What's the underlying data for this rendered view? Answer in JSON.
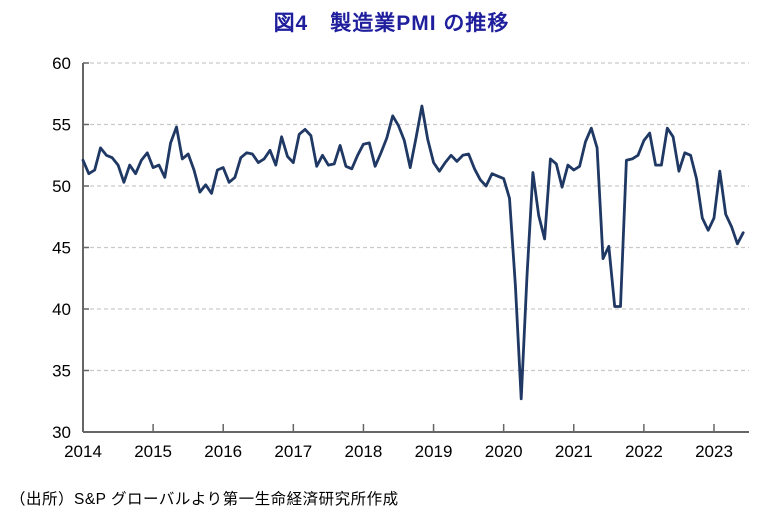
{
  "title": "図4　製造業PMI の推移",
  "source": "（出所）S&P グローバルより第一生命経済研究所作成",
  "colors": {
    "line": "#1f3864",
    "title": "#1f1f9e",
    "axis": "#666666",
    "grid": "#c9c9c9",
    "text": "#000000",
    "background": "#ffffff"
  },
  "chart_data": {
    "type": "line",
    "title": "図4　製造業PMI の推移",
    "xlabel": "",
    "ylabel": "",
    "x_unit": "month",
    "x_start": "2014-01",
    "x_end": "2023-06",
    "x_tick_labels": [
      "2014",
      "2015",
      "2016",
      "2017",
      "2018",
      "2019",
      "2020",
      "2021",
      "2022",
      "2023"
    ],
    "ylim": [
      30,
      60
    ],
    "y_ticks": [
      30,
      35,
      40,
      45,
      50,
      55,
      60
    ],
    "grid": "horizontal-dashed",
    "legend": "none",
    "series": [
      {
        "name": "製造業PMI",
        "values": [
          52.1,
          51.0,
          51.3,
          53.1,
          52.5,
          52.3,
          51.7,
          50.3,
          51.7,
          51.0,
          52.1,
          52.7,
          51.5,
          51.7,
          50.7,
          53.5,
          54.8,
          52.2,
          52.6,
          51.3,
          49.5,
          50.1,
          49.4,
          51.3,
          51.5,
          50.3,
          50.7,
          52.3,
          52.7,
          52.6,
          51.9,
          52.2,
          52.9,
          51.7,
          54.0,
          52.4,
          51.9,
          54.2,
          54.6,
          54.1,
          51.6,
          52.5,
          51.7,
          51.8,
          53.3,
          51.6,
          51.4,
          52.5,
          53.4,
          53.5,
          51.6,
          52.7,
          53.9,
          55.7,
          54.9,
          53.7,
          51.5,
          53.9,
          56.5,
          53.8,
          51.9,
          51.2,
          51.9,
          52.5,
          52.0,
          52.5,
          52.6,
          51.4,
          50.5,
          50.0,
          51.0,
          50.8,
          50.6,
          49.0,
          41.9,
          32.7,
          42.7,
          51.1,
          47.6,
          45.7,
          52.2,
          51.8,
          49.9,
          51.7,
          51.3,
          51.6,
          53.6,
          54.7,
          53.1,
          44.1,
          45.1,
          40.2,
          40.2,
          52.1,
          52.2,
          52.5,
          53.7,
          54.3,
          51.7,
          51.7,
          54.7,
          54.0,
          51.2,
          52.7,
          52.5,
          50.6,
          47.4,
          46.4,
          47.4,
          51.2,
          47.7,
          46.7,
          45.3,
          46.2
        ]
      }
    ]
  }
}
